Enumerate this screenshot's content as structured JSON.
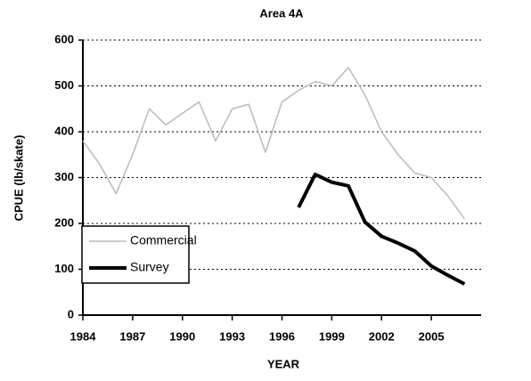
{
  "chart_data": {
    "type": "line",
    "title": "Area 4A",
    "xlabel": "YEAR",
    "ylabel": "CPUE (lb/skate)",
    "x": [
      1984,
      1985,
      1986,
      1987,
      1988,
      1989,
      1990,
      1991,
      1992,
      1993,
      1994,
      1995,
      1996,
      1997,
      1998,
      1999,
      2000,
      2001,
      2002,
      2003,
      2004,
      2005,
      2006,
      2007
    ],
    "series": [
      {
        "name": "Commercial",
        "color": "#bbbbbb",
        "values": [
          380,
          330,
          265,
          350,
          450,
          415,
          440,
          465,
          380,
          450,
          460,
          355,
          465,
          490,
          510,
          500,
          540,
          480,
          400,
          350,
          310,
          300,
          260,
          210
        ]
      },
      {
        "name": "Survey",
        "color": "#000000",
        "values": [
          null,
          null,
          null,
          null,
          null,
          null,
          null,
          null,
          null,
          null,
          null,
          null,
          null,
          235,
          307,
          290,
          282,
          203,
          172,
          157,
          140,
          107,
          87,
          68
        ]
      }
    ],
    "xlim": [
      1984,
      2008
    ],
    "xticks": [
      1984,
      1987,
      1990,
      1993,
      1996,
      1999,
      2002,
      2005
    ],
    "ylim": [
      0,
      600
    ],
    "yticks": [
      0,
      100,
      200,
      300,
      400,
      500,
      600
    ],
    "grid": true,
    "legend": "lower left"
  }
}
